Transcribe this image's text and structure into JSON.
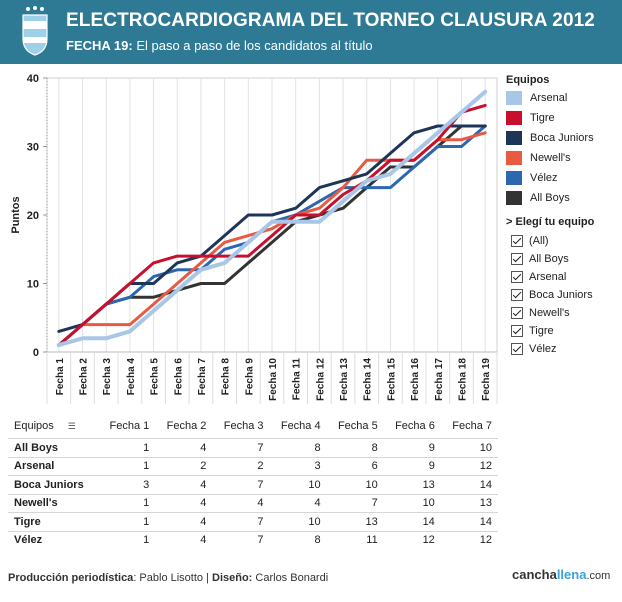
{
  "header": {
    "title": "ELECTROCARDIOGRAMA DEL TORNEO CLAUSURA 2012",
    "subtitle_bold": "FECHA 19:",
    "subtitle_rest": "El paso a paso de los candidatos al título",
    "bg_color": "#2e7a94"
  },
  "legend": {
    "title": "Equipos",
    "items": [
      {
        "label": "Arsenal",
        "color": "#a8c6e8"
      },
      {
        "label": "Tigre",
        "color": "#c8102e"
      },
      {
        "label": "Boca Juniors",
        "color": "#1d3557"
      },
      {
        "label": "Newell's",
        "color": "#e85a42"
      },
      {
        "label": "Vélez",
        "color": "#2b68b0"
      },
      {
        "label": "All Boys",
        "color": "#333333"
      }
    ]
  },
  "filter": {
    "title": "> Elegí tu equipo",
    "items": [
      "(All)",
      "All Boys",
      "Arsenal",
      "Boca Juniors",
      "Newell's",
      "Tigre",
      "Vélez"
    ]
  },
  "chart_data": {
    "type": "line",
    "ylabel": "Puntos",
    "xlabel": "",
    "ylim": [
      0,
      40
    ],
    "yticks": [
      0,
      10,
      20,
      30,
      40
    ],
    "categories": [
      "Fecha 1",
      "Fecha 2",
      "Fecha 3",
      "Fecha 4",
      "Fecha 5",
      "Fecha 6",
      "Fecha 7",
      "Fecha 8",
      "Fecha 9",
      "Fecha 10",
      "Fecha 11",
      "Fecha 12",
      "Fecha 13",
      "Fecha 14",
      "Fecha 15",
      "Fecha 16",
      "Fecha 17",
      "Fecha 18",
      "Fecha 19"
    ],
    "series": [
      {
        "name": "All Boys",
        "color": "#333333",
        "values": [
          1,
          4,
          7,
          8,
          8,
          9,
          10,
          10,
          13,
          16,
          19,
          20,
          21,
          24,
          27,
          27,
          30,
          33,
          33
        ]
      },
      {
        "name": "Vélez",
        "color": "#2b68b0",
        "values": [
          1,
          4,
          7,
          8,
          11,
          12,
          12,
          15,
          16,
          19,
          20,
          22,
          24,
          24,
          24,
          27,
          30,
          30,
          33
        ]
      },
      {
        "name": "Newell's",
        "color": "#e85a42",
        "values": [
          1,
          4,
          4,
          4,
          7,
          10,
          13,
          16,
          17,
          18,
          20,
          21,
          24,
          28,
          28,
          28,
          31,
          31,
          32
        ]
      },
      {
        "name": "Boca Juniors",
        "color": "#1d3557",
        "values": [
          3,
          4,
          7,
          10,
          10,
          13,
          14,
          17,
          20,
          20,
          21,
          24,
          25,
          26,
          29,
          32,
          33,
          33,
          33
        ]
      },
      {
        "name": "Tigre",
        "color": "#c8102e",
        "values": [
          1,
          4,
          7,
          10,
          13,
          14,
          14,
          14,
          14,
          17,
          20,
          20,
          23,
          25,
          28,
          28,
          31,
          35,
          36
        ]
      },
      {
        "name": "Arsenal",
        "color": "#a8c6e8",
        "values": [
          1,
          2,
          2,
          3,
          6,
          9,
          12,
          13,
          16,
          19,
          19,
          19,
          22,
          25,
          26,
          29,
          32,
          35,
          38
        ]
      }
    ]
  },
  "table": {
    "headers": [
      "Equipos",
      "Fecha 1",
      "Fecha 2",
      "Fecha 3",
      "Fecha 4",
      "Fecha 5",
      "Fecha 6",
      "Fecha 7"
    ],
    "rows": [
      {
        "team": "All Boys",
        "values": [
          "1",
          "4",
          "7",
          "8",
          "8",
          "9",
          "10"
        ]
      },
      {
        "team": "Arsenal",
        "values": [
          "1",
          "2",
          "2",
          "3",
          "6",
          "9",
          "12"
        ]
      },
      {
        "team": "Boca Juniors",
        "values": [
          "3",
          "4",
          "7",
          "10",
          "10",
          "13",
          "14"
        ]
      },
      {
        "team": "Newell's",
        "values": [
          "1",
          "4",
          "4",
          "4",
          "7",
          "10",
          "13"
        ]
      },
      {
        "team": "Tigre",
        "values": [
          "1",
          "4",
          "7",
          "10",
          "13",
          "14",
          "14"
        ]
      },
      {
        "team": "Vélez",
        "values": [
          "1",
          "4",
          "7",
          "8",
          "11",
          "12",
          "12"
        ]
      }
    ]
  },
  "footer": {
    "produccion_label": "Producción periodística",
    "produccion_value": ": Pablo Lisotto | ",
    "diseno_label": "Diseño:",
    "diseno_value": " Carlos Bonardi",
    "brand_a": "cancha",
    "brand_b": "llena",
    "brand_c": ".com"
  }
}
